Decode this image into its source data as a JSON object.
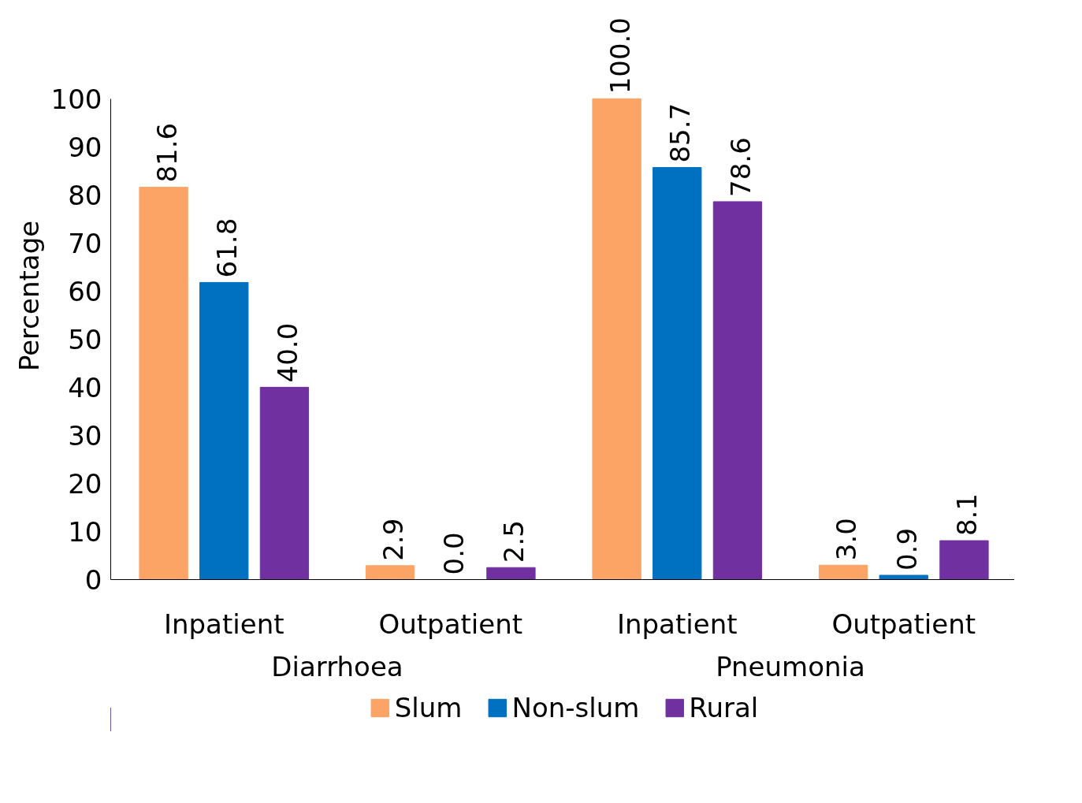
{
  "chart_data": {
    "type": "bar",
    "ylabel": "Percentage",
    "categories": [
      "Inpatient",
      "Outpatient",
      "Inpatient",
      "Outpatient"
    ],
    "annotations": [
      "Diarrhoea",
      "Pneumonia"
    ],
    "series": [
      {
        "name": "Slum",
        "color": "#fba466",
        "values": [
          81.6,
          2.9,
          100.0,
          3.0
        ],
        "value_labels": [
          "81.6",
          "2.9",
          "100.0",
          "3.0"
        ]
      },
      {
        "name": "Non-slum",
        "color": "#0070c0",
        "values": [
          61.8,
          0.0,
          85.7,
          0.9
        ],
        "value_labels": [
          "61.8",
          "0.0",
          "85.7",
          "0.9"
        ]
      },
      {
        "name": "Rural",
        "color": "#7030a0",
        "values": [
          40.0,
          2.5,
          78.6,
          8.1
        ],
        "value_labels": [
          "40.0",
          "2.5",
          "78.6",
          "8.1"
        ]
      }
    ],
    "ylim": [
      0,
      100
    ],
    "yticks": [
      0,
      10,
      20,
      30,
      40,
      50,
      60,
      70,
      80,
      90,
      100
    ],
    "legend": "bottom",
    "grid": false
  }
}
